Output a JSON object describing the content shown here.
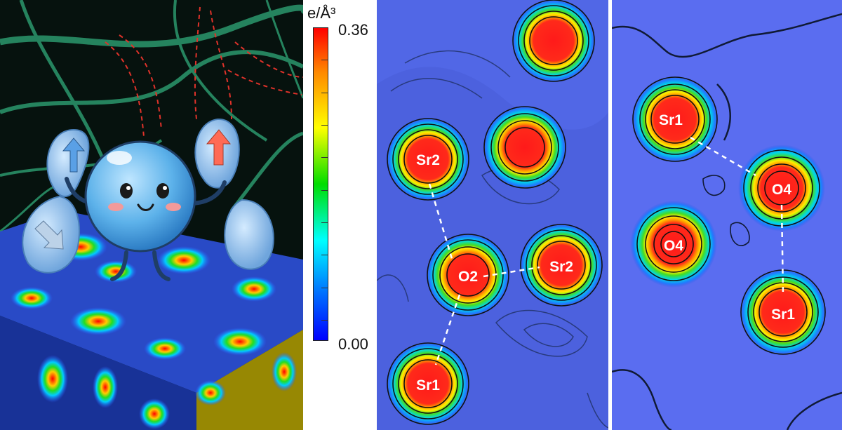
{
  "colorbar": {
    "unit": "e/Å³",
    "max_label": "0.36",
    "min_label": "0.00",
    "colors": [
      "#ff0000",
      "#ff8800",
      "#ffff00",
      "#00dd00",
      "#00ffff",
      "#0077ff",
      "#0000ff"
    ]
  },
  "middle_panel": {
    "labels": {
      "sr2_top": "Sr2",
      "o2": "O2",
      "sr2_right": "Sr2",
      "sr1": "Sr1"
    }
  },
  "right_panel": {
    "labels": {
      "sr1_top": "Sr1",
      "o4_right": "O4",
      "o4_left": "O4",
      "sr1_bottom": "Sr1"
    }
  },
  "left_panel": {
    "arrow_colors": {
      "blue": "#5aa0e6",
      "red": "#ff6a55"
    }
  }
}
